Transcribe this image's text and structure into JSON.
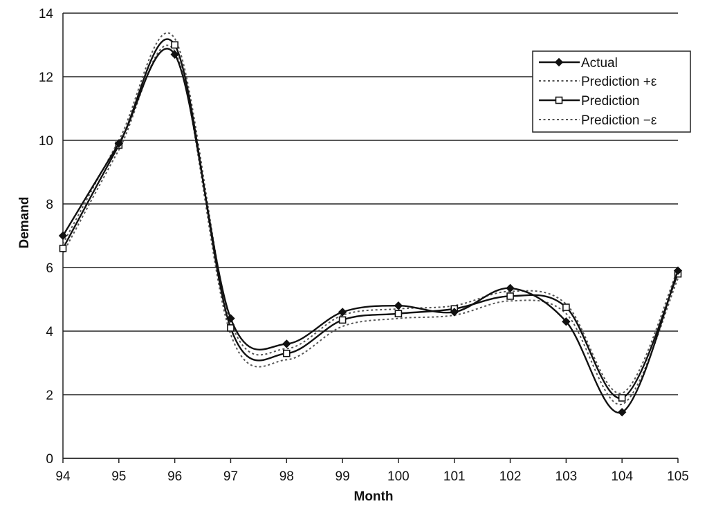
{
  "chart_data": {
    "type": "line",
    "xlabel": "Month",
    "ylabel": "Demand",
    "xlim": [
      94,
      105
    ],
    "ylim": [
      0,
      14
    ],
    "x_ticks": [
      "94",
      "95",
      "96",
      "97",
      "98",
      "99",
      "100",
      "101",
      "102",
      "103",
      "104",
      "105"
    ],
    "y_ticks": [
      "0",
      "2",
      "4",
      "6",
      "8",
      "10",
      "12",
      "14"
    ],
    "grid": "horizontal",
    "legend_position": "top-right",
    "x": [
      94,
      95,
      96,
      97,
      98,
      99,
      100,
      101,
      102,
      103,
      104,
      105
    ],
    "series": [
      {
        "name": "Actual",
        "style": "solid-diamond",
        "values": [
          7.0,
          9.9,
          12.7,
          4.4,
          3.6,
          4.6,
          4.8,
          4.6,
          5.35,
          4.3,
          1.45,
          5.9
        ]
      },
      {
        "name": "Prediction +ε",
        "style": "dotted",
        "values": [
          6.75,
          10.0,
          13.2,
          4.3,
          3.45,
          4.5,
          4.7,
          4.8,
          5.25,
          4.85,
          2.05,
          5.95
        ]
      },
      {
        "name": "Prediction",
        "style": "solid-square",
        "values": [
          6.6,
          9.85,
          13.0,
          4.1,
          3.3,
          4.35,
          4.55,
          4.7,
          5.1,
          4.75,
          1.9,
          5.8
        ]
      },
      {
        "name": "Prediction −ε",
        "style": "dotted",
        "values": [
          6.45,
          9.7,
          12.8,
          3.9,
          3.1,
          4.15,
          4.4,
          4.5,
          4.95,
          4.55,
          1.7,
          5.65
        ]
      }
    ]
  },
  "legend": {
    "items": [
      "Actual",
      "Prediction +ε",
      "Prediction",
      "Prediction −ε"
    ]
  }
}
